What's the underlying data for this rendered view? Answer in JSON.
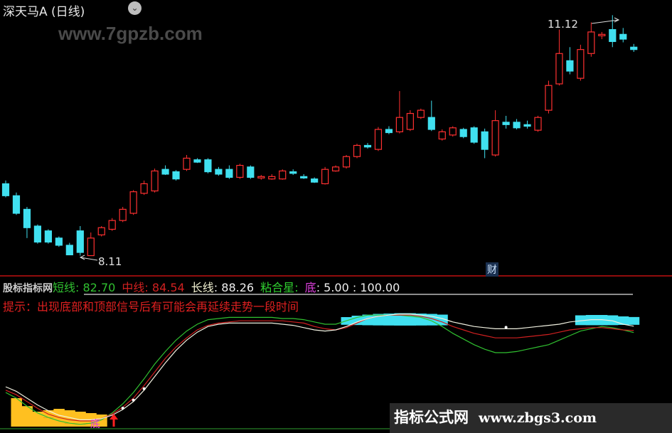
{
  "header": {
    "title": "深天马A (日线)",
    "dropdown_icon": "chevron-down-icon"
  },
  "watermark_top": "www.7gpzb.com",
  "watermark_bottom": {
    "brand": "指标公式网",
    "url": "www.zbgs3.com"
  },
  "price_markers": {
    "high": "11.12",
    "low": "8.11"
  },
  "finance_badge": "财",
  "indicator": {
    "name": "股标指标网",
    "short_label": "短线",
    "short_value": ": 82.70",
    "mid_label": "中线",
    "mid_value": ": 84.54",
    "long_label": "长线",
    "long_value": ": 88.26",
    "star_label": "粘合星",
    "star_value": ":",
    "bottom_label": "底",
    "bottom_value": ": 5.00 : 100.00",
    "hint": "提示：出现底部和顶部信号后有可能会再延续走势一段时间",
    "bottom_marker": "底"
  },
  "colors": {
    "up": "#ff3030",
    "down": "#40e0f0",
    "short": "#30c030",
    "mid": "#d02020",
    "long": "#f0f0e0",
    "bottom": "#ffc020",
    "top": "#40e0f0",
    "separator": "#c01010"
  },
  "chart_data": [
    {
      "type": "candlestick",
      "title": "深天马A (日线)",
      "columns": [
        "open",
        "high",
        "low",
        "close"
      ],
      "candles": [
        [
          9.01,
          9.05,
          8.84,
          8.86
        ],
        [
          8.86,
          8.9,
          8.62,
          8.64
        ],
        [
          8.69,
          8.72,
          8.33,
          8.46
        ],
        [
          8.48,
          8.5,
          8.26,
          8.28
        ],
        [
          8.42,
          8.44,
          8.26,
          8.28
        ],
        [
          8.33,
          8.35,
          8.22,
          8.24
        ],
        [
          8.24,
          8.27,
          8.12,
          8.12
        ],
        [
          8.42,
          8.48,
          8.11,
          8.15
        ],
        [
          8.11,
          8.4,
          8.11,
          8.33
        ],
        [
          8.37,
          8.48,
          8.35,
          8.46
        ],
        [
          8.44,
          8.58,
          8.42,
          8.55
        ],
        [
          8.55,
          8.72,
          8.53,
          8.69
        ],
        [
          8.64,
          8.93,
          8.62,
          8.91
        ],
        [
          8.89,
          9.05,
          8.87,
          9.01
        ],
        [
          8.92,
          9.2,
          8.9,
          9.17
        ],
        [
          9.19,
          9.24,
          9.12,
          9.13
        ],
        [
          9.16,
          9.18,
          9.05,
          9.07
        ],
        [
          9.19,
          9.37,
          9.17,
          9.33
        ],
        [
          9.31,
          9.33,
          9.27,
          9.28
        ],
        [
          9.31,
          9.33,
          9.14,
          9.16
        ],
        [
          9.19,
          9.22,
          9.11,
          9.13
        ],
        [
          9.19,
          9.24,
          9.07,
          9.09
        ],
        [
          9.09,
          9.26,
          9.07,
          9.24
        ],
        [
          9.22,
          9.24,
          9.07,
          9.09
        ],
        [
          9.09,
          9.12,
          9.06,
          9.1
        ],
        [
          9.07,
          9.13,
          9.06,
          9.1
        ],
        [
          9.07,
          9.19,
          9.06,
          9.17
        ],
        [
          9.16,
          9.19,
          9.12,
          9.14
        ],
        [
          9.1,
          9.13,
          9.07,
          9.09
        ],
        [
          9.07,
          9.09,
          9.02,
          9.03
        ],
        [
          9.01,
          9.22,
          9.0,
          9.19
        ],
        [
          9.17,
          9.24,
          9.16,
          9.22
        ],
        [
          9.22,
          9.37,
          9.2,
          9.35
        ],
        [
          9.35,
          9.51,
          9.33,
          9.49
        ],
        [
          9.49,
          9.52,
          9.45,
          9.47
        ],
        [
          9.44,
          9.72,
          9.42,
          9.69
        ],
        [
          9.69,
          9.73,
          9.63,
          9.65
        ],
        [
          9.66,
          10.17,
          9.64,
          9.84
        ],
        [
          9.69,
          9.93,
          9.67,
          9.89
        ],
        [
          9.84,
          9.95,
          9.82,
          9.93
        ],
        [
          9.84,
          10.05,
          9.67,
          9.69
        ],
        [
          9.57,
          9.69,
          9.55,
          9.66
        ],
        [
          9.62,
          9.73,
          9.6,
          9.71
        ],
        [
          9.69,
          9.71,
          9.58,
          9.6
        ],
        [
          9.71,
          9.73,
          9.51,
          9.53
        ],
        [
          9.66,
          9.7,
          9.33,
          9.44
        ],
        [
          9.37,
          9.93,
          9.35,
          9.8
        ],
        [
          9.78,
          9.86,
          9.7,
          9.75
        ],
        [
          9.78,
          9.82,
          9.69,
          9.71
        ],
        [
          9.75,
          9.8,
          9.7,
          9.73
        ],
        [
          9.68,
          9.86,
          9.66,
          9.84
        ],
        [
          9.93,
          10.3,
          9.89,
          10.24
        ],
        [
          10.26,
          10.94,
          10.24,
          10.64
        ],
        [
          10.55,
          10.72,
          10.38,
          10.42
        ],
        [
          10.33,
          10.75,
          10.3,
          10.69
        ],
        [
          10.64,
          11.03,
          10.6,
          10.91
        ],
        [
          10.87,
          10.91,
          10.82,
          10.88
        ],
        [
          10.94,
          11.12,
          10.72,
          10.79
        ],
        [
          10.88,
          10.96,
          10.78,
          10.82
        ],
        [
          10.72,
          10.76,
          10.66,
          10.69
        ]
      ],
      "high_marker": 11.12,
      "low_marker": 8.11
    },
    {
      "type": "line",
      "ylim": [
        0,
        100
      ],
      "series": [
        {
          "name": "短线",
          "values": [
            30,
            25,
            18,
            12,
            8,
            5,
            3,
            2,
            3,
            6,
            12,
            20,
            30,
            42,
            55,
            66,
            76,
            84,
            90,
            94,
            95,
            96,
            96,
            96,
            96,
            96,
            95,
            95,
            94,
            92,
            90,
            90,
            93,
            96,
            98,
            98,
            98,
            98,
            97,
            96,
            93,
            88,
            82,
            77,
            72,
            68,
            65,
            65,
            66,
            68,
            70,
            72,
            76,
            80,
            84,
            86,
            88,
            87,
            85,
            82.7
          ]
        },
        {
          "name": "中线",
          "values": [
            32,
            28,
            22,
            16,
            11,
            8,
            6,
            5,
            5,
            7,
            11,
            17,
            25,
            36,
            48,
            60,
            70,
            78,
            85,
            89,
            91,
            92,
            93,
            93,
            93,
            93,
            93,
            92,
            91,
            88,
            86,
            85,
            87,
            91,
            95,
            97,
            98,
            98,
            98,
            97,
            95,
            92,
            88,
            85,
            82,
            80,
            78,
            78,
            78,
            79,
            80,
            81,
            83,
            85,
            86,
            87,
            87,
            86,
            85,
            84.54
          ]
        },
        {
          "name": "长线",
          "values": [
            35,
            31,
            25,
            19,
            14,
            10,
            8,
            6,
            6,
            7,
            10,
            15,
            22,
            32,
            44,
            56,
            67,
            76,
            83,
            88,
            90,
            91,
            91,
            91,
            91,
            91,
            90,
            89,
            87,
            85,
            84,
            85,
            88,
            92,
            95,
            97,
            98,
            99,
            99,
            98,
            97,
            95,
            92,
            90,
            88,
            87,
            86,
            86,
            86,
            87,
            88,
            89,
            90,
            92,
            93,
            94,
            94,
            93,
            90,
            88.26
          ]
        }
      ],
      "bottom_zone_bars": [
        1,
        2,
        3,
        4,
        5,
        6,
        7,
        8,
        9
      ],
      "top_zone_bars": [
        32,
        33,
        34,
        35,
        36,
        37,
        38,
        39,
        40,
        41,
        54,
        55,
        56,
        57,
        58,
        59
      ]
    }
  ]
}
